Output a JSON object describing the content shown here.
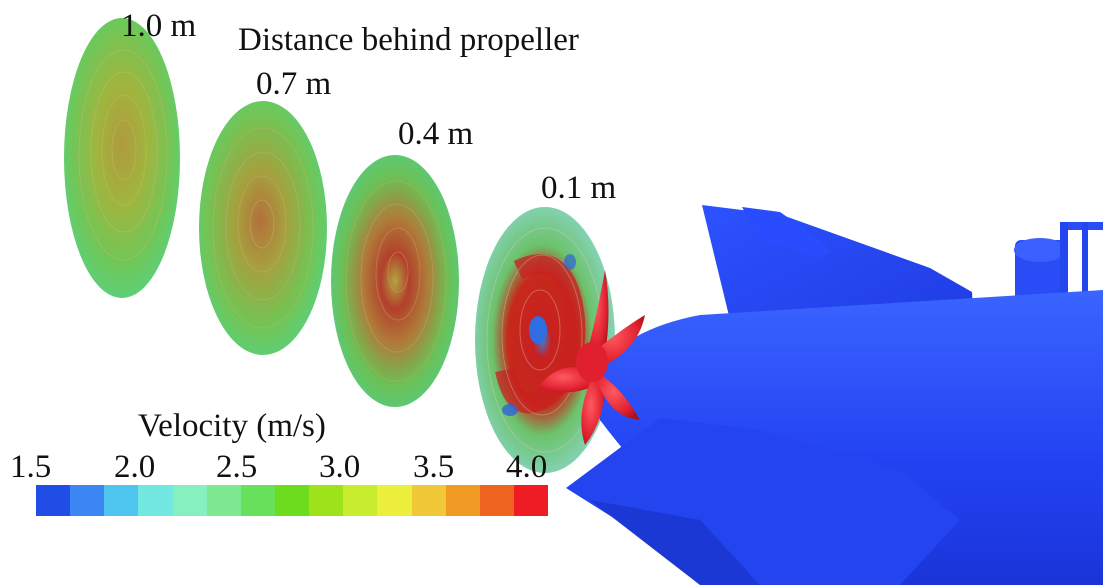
{
  "title": "Distance behind propeller",
  "planes": [
    {
      "label": "1.0 m"
    },
    {
      "label": "0.7 m"
    },
    {
      "label": "0.4 m"
    },
    {
      "label": "0.1 m"
    }
  ],
  "legend": {
    "title": "Velocity (m/s)",
    "ticks": [
      "1.5",
      "2.0",
      "2.5",
      "3.0",
      "3.5",
      "4.0"
    ],
    "colors": [
      "#1f4de6",
      "#3b86f2",
      "#4fc6f0",
      "#73e8e0",
      "#86f0c0",
      "#7ee890",
      "#67e05c",
      "#6edc1e",
      "#9ee21c",
      "#c8ec2e",
      "#ecf03c",
      "#f0c838",
      "#f09a24",
      "#ee6420",
      "#ef1c24"
    ]
  },
  "colors": {
    "hull": "#2447ff",
    "propeller": "#e01f2f"
  }
}
